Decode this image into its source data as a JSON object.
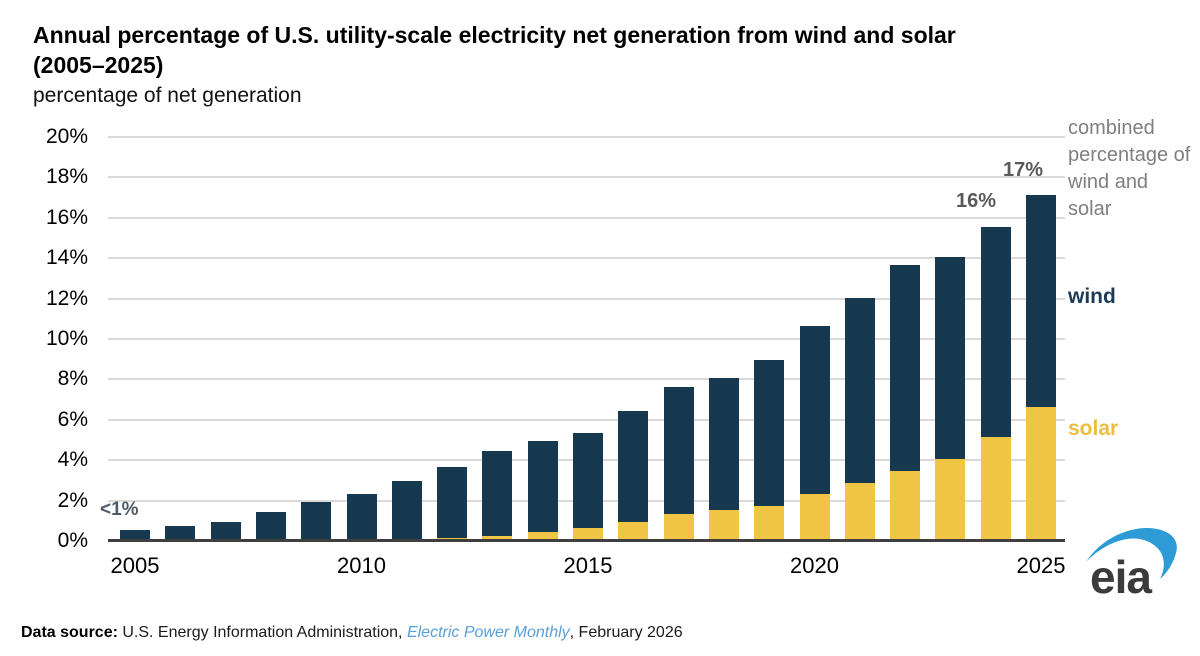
{
  "title": {
    "line1": "Annual percentage of U.S. utility-scale electricity net generation from wind and solar",
    "line2": "(2005–2025)"
  },
  "subtitle": "percentage of net generation",
  "right_labels": {
    "combined": "combined percentage of wind and solar",
    "wind": "wind",
    "solar": "solar"
  },
  "annotations": {
    "first_bar": "<1%",
    "bar_2024": "16%",
    "bar_2025": "17%"
  },
  "footer": {
    "label": "Data source:",
    "agency": " U.S. Energy Information Administration, ",
    "publication": "Electric Power Monthly",
    "date": ", February 2026"
  },
  "logo_text": "eia",
  "colors": {
    "wind": "#17394f",
    "solar": "#f0c445",
    "gridline": "#dadada",
    "axis": "#3f3f3f",
    "annotation_gray": "#595959",
    "legend_gray": "#7f7f7f",
    "link_blue": "#58a0d7",
    "logo_swoosh_blue": "#2e9bd6",
    "logo_text_gray": "#3b3b3b"
  },
  "chart_data": {
    "type": "bar",
    "stacked": true,
    "title": "Annual percentage of U.S. utility-scale electricity net generation from wind and solar (2005–2025)",
    "ylabel": "percentage of net generation",
    "xlabel": "",
    "x": [
      2005,
      2006,
      2007,
      2008,
      2009,
      2010,
      2011,
      2012,
      2013,
      2014,
      2015,
      2016,
      2017,
      2018,
      2019,
      2020,
      2021,
      2022,
      2023,
      2024,
      2025
    ],
    "series": [
      {
        "name": "solar",
        "values": [
          0,
          0,
          0,
          0,
          0,
          0,
          0,
          0.1,
          0.2,
          0.4,
          0.6,
          0.9,
          1.3,
          1.5,
          1.7,
          2.3,
          2.8,
          3.4,
          4.0,
          5.1,
          6.6
        ]
      },
      {
        "name": "wind",
        "values": [
          0.5,
          0.7,
          0.9,
          1.4,
          1.9,
          2.3,
          2.9,
          3.5,
          4.2,
          4.5,
          4.7,
          5.5,
          6.3,
          6.5,
          7.2,
          8.3,
          9.2,
          10.2,
          10.0,
          10.4,
          10.5
        ]
      }
    ],
    "totals": [
      0.5,
      0.7,
      0.9,
      1.4,
      1.9,
      2.3,
      2.9,
      3.6,
      4.4,
      4.9,
      5.3,
      6.4,
      7.6,
      8.0,
      8.9,
      10.6,
      12.0,
      13.6,
      14.0,
      15.5,
      17.1
    ],
    "ylim": [
      0,
      20
    ],
    "yticks": [
      0,
      2,
      4,
      6,
      8,
      10,
      12,
      14,
      16,
      18,
      20
    ],
    "ytick_labels": [
      "0%",
      "2%",
      "4%",
      "6%",
      "8%",
      "10%",
      "12%",
      "14%",
      "16%",
      "18%",
      "20%"
    ],
    "xticks": [
      2005,
      2010,
      2015,
      2020,
      2025
    ],
    "xtick_labels": [
      "2005",
      "2010",
      "2015",
      "2020",
      "2025"
    ],
    "grid": "horizontal",
    "legend_position": "right"
  }
}
